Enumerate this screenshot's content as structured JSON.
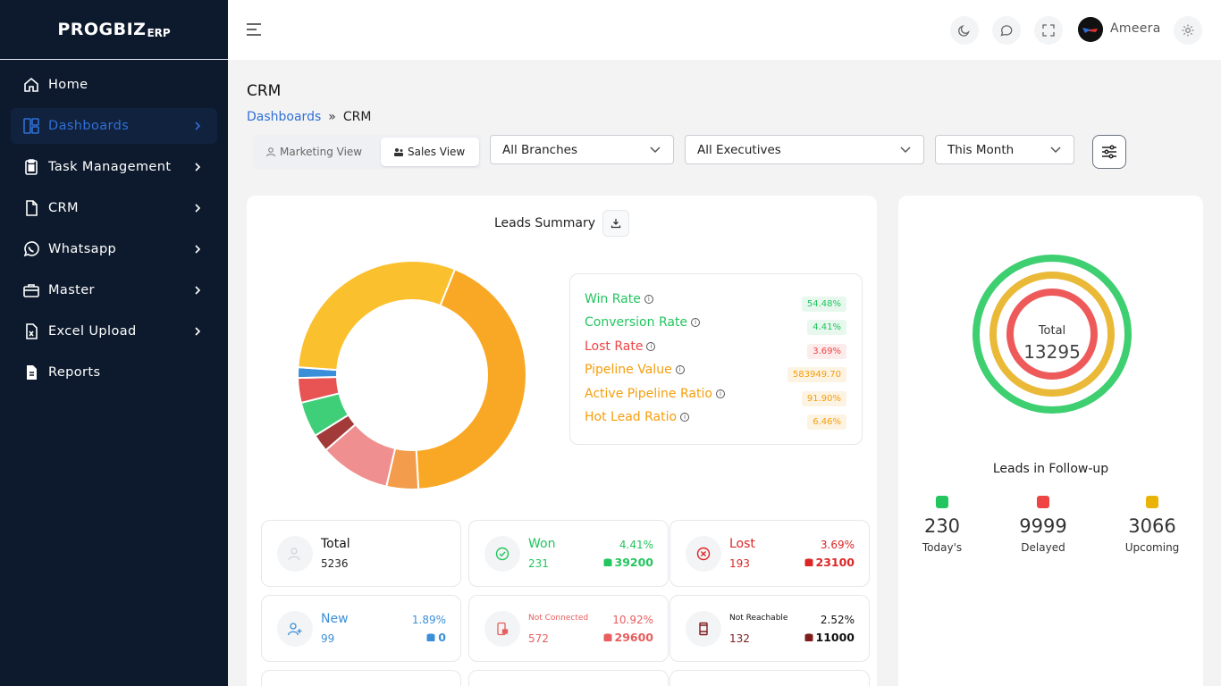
{
  "brand": {
    "name": "PROGBIZ",
    "suffix": "ERP"
  },
  "sidebar": {
    "items": [
      {
        "label": "Home",
        "icon": "home-icon"
      },
      {
        "label": "Dashboards",
        "icon": "dashboard-icon",
        "active": true
      },
      {
        "label": "Task Management",
        "icon": "clipboard-icon"
      },
      {
        "label": "CRM",
        "icon": "document-icon"
      },
      {
        "label": "Whatsapp",
        "icon": "whatsapp-icon"
      },
      {
        "label": "Master",
        "icon": "briefcase-icon"
      },
      {
        "label": "Excel Upload",
        "icon": "excel-file-icon"
      },
      {
        "label": "Reports",
        "icon": "report-file-icon"
      }
    ]
  },
  "header": {
    "user_name": "Ameera",
    "icons": [
      "moon-icon",
      "chat-icon",
      "fullscreen-icon",
      "settings-icon"
    ]
  },
  "page": {
    "title": "CRM",
    "breadcrumb": {
      "parent": "Dashboards",
      "separator": "»",
      "current": "CRM"
    }
  },
  "filters": {
    "views": {
      "marketing": "Marketing View",
      "sales": "Sales View",
      "selected": "Sales View"
    },
    "branch": "All Branches",
    "executive": "All Executives",
    "period": "This Month"
  },
  "leads_summary": {
    "title": "Leads Summary",
    "metrics": [
      {
        "label": "Win Rate",
        "value": "54.48%",
        "color": "#22c55e"
      },
      {
        "label": "Conversion Rate",
        "value": "4.41%",
        "color": "#22c55e"
      },
      {
        "label": "Lost Rate",
        "value": "3.69%",
        "color": "#ef4444"
      },
      {
        "label": "Pipeline Value",
        "value": "583949.70",
        "color": "#f59e0b"
      },
      {
        "label": "Active Pipeline Ratio",
        "value": "91.90%",
        "color": "#f59e0b"
      },
      {
        "label": "Hot Lead Ratio",
        "value": "6.46%",
        "color": "#f59e0b"
      }
    ],
    "stats": [
      {
        "label": "Total",
        "count": "5236",
        "pct": "",
        "amount": "",
        "color": "#111111"
      },
      {
        "label": "Won",
        "count": "231",
        "pct": "4.41%",
        "amount": "39200",
        "color": "#22c55e"
      },
      {
        "label": "Lost",
        "count": "193",
        "pct": "3.69%",
        "amount": "23100",
        "color": "#dc2626"
      },
      {
        "label": "New",
        "count": "99",
        "pct": "1.89%",
        "amount": "0",
        "color": "#3b8fd9"
      },
      {
        "label": "Not Connected",
        "count": "572",
        "pct": "10.92%",
        "amount": "29600",
        "color": "#e85d5d"
      },
      {
        "label": "Not Reachable",
        "count": "132",
        "pct": "2.52%",
        "amount": "11000",
        "color": "#7f1d1d"
      }
    ]
  },
  "follow_up": {
    "title": "Leads in Follow-up",
    "total_label": "Total",
    "total": "13295",
    "items": [
      {
        "label": "Today's",
        "value": "230",
        "color": "#22c55e"
      },
      {
        "label": "Delayed",
        "value": "9999",
        "color": "#ef4444"
      },
      {
        "label": "Upcoming",
        "value": "3066",
        "color": "#eab308"
      }
    ]
  },
  "chart_data": {
    "type": "pie",
    "title": "Leads Summary",
    "segments": [
      {
        "color": "#f9a825",
        "value": 43
      },
      {
        "color": "#f39c4b",
        "value": 4.5
      },
      {
        "color": "#ef8f8f",
        "value": 10
      },
      {
        "color": "#a33a3a",
        "value": 2.5
      },
      {
        "color": "#3ecf78",
        "value": 5
      },
      {
        "color": "#e85454",
        "value": 3.5
      },
      {
        "color": "#3b8fd9",
        "value": 1.5
      },
      {
        "color": "#fbc02d",
        "value": 30
      }
    ]
  }
}
